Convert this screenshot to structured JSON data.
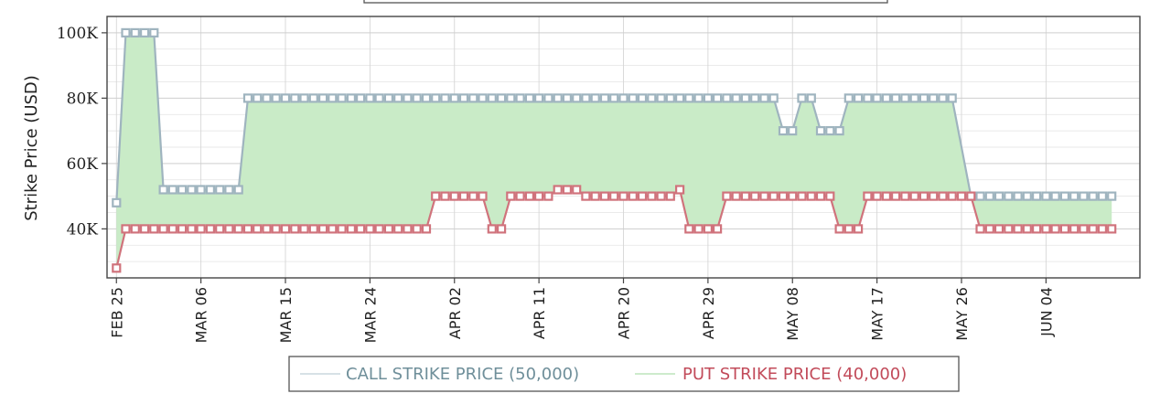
{
  "chart_data": {
    "type": "area",
    "title": "",
    "xlabel": "",
    "ylabel": "Strike Price (USD)",
    "ylim": [
      25000,
      105000
    ],
    "xlim": [
      "2025-02-24",
      "2025-06-14"
    ],
    "grid": true,
    "y_ticks": [
      {
        "value": 40000,
        "label": "40K"
      },
      {
        "value": 60000,
        "label": "60K"
      },
      {
        "value": 80000,
        "label": "80K"
      },
      {
        "value": 100000,
        "label": "100K"
      }
    ],
    "x_ticks": [
      {
        "value": "2025-02-25",
        "label": "FEB 25"
      },
      {
        "value": "2025-03-06",
        "label": "MAR 06"
      },
      {
        "value": "2025-03-15",
        "label": "MAR 15"
      },
      {
        "value": "2025-03-24",
        "label": "MAR 24"
      },
      {
        "value": "2025-04-02",
        "label": "APR 02"
      },
      {
        "value": "2025-04-11",
        "label": "APR 11"
      },
      {
        "value": "2025-04-20",
        "label": "APR 20"
      },
      {
        "value": "2025-04-29",
        "label": "APR 29"
      },
      {
        "value": "2025-05-08",
        "label": "MAY 08"
      },
      {
        "value": "2025-05-17",
        "label": "MAY 17"
      },
      {
        "value": "2025-05-26",
        "label": "MAY 26"
      },
      {
        "value": "2025-06-04",
        "label": "JUN 04"
      }
    ],
    "legend": {
      "placement": "bottom",
      "entries": [
        {
          "label": "CALL STRIKE PRICE (50,000)",
          "color": "#7a9aa6"
        },
        {
          "label": "PUT STRIKE PRICE (40,000)",
          "color": "#c8505f"
        }
      ]
    },
    "fill_color": "#c9ebc7",
    "series": [
      {
        "name": "CALL STRIKE PRICE",
        "color": "#9fb4bf",
        "segments": [
          {
            "from": "2025-02-25",
            "to": "2025-02-25",
            "value": 48000
          },
          {
            "from": "2025-02-26",
            "to": "2025-02-29",
            "value": 100000
          },
          {
            "from": "2025-03-02",
            "to": "2025-03-10",
            "value": 52000
          },
          {
            "from": "2025-03-11",
            "to": "2025-05-06",
            "value": 80000
          },
          {
            "from": "2025-05-07",
            "to": "2025-05-08",
            "value": 70000
          },
          {
            "from": "2025-05-09",
            "to": "2025-05-10",
            "value": 80000
          },
          {
            "from": "2025-05-11",
            "to": "2025-05-13",
            "value": 70000
          },
          {
            "from": "2025-05-14",
            "to": "2025-05-25",
            "value": 80000
          },
          {
            "from": "2025-05-27",
            "to": "2025-06-11",
            "value": 50000
          }
        ]
      },
      {
        "name": "PUT STRIKE PRICE",
        "color": "#d0737c",
        "segments": [
          {
            "from": "2025-02-25",
            "to": "2025-02-25",
            "value": 28000
          },
          {
            "from": "2025-02-26",
            "to": "2025-03-30",
            "value": 40000
          },
          {
            "from": "2025-03-31",
            "to": "2025-04-05",
            "value": 50000
          },
          {
            "from": "2025-04-06",
            "to": "2025-04-07",
            "value": 40000
          },
          {
            "from": "2025-04-08",
            "to": "2025-04-12",
            "value": 50000
          },
          {
            "from": "2025-04-13",
            "to": "2025-04-15",
            "value": 52000
          },
          {
            "from": "2025-04-16",
            "to": "2025-04-25",
            "value": 50000
          },
          {
            "from": "2025-04-26",
            "to": "2025-04-26",
            "value": 52000
          },
          {
            "from": "2025-04-27",
            "to": "2025-04-30",
            "value": 40000
          },
          {
            "from": "2025-05-01",
            "to": "2025-05-12",
            "value": 50000
          },
          {
            "from": "2025-05-13",
            "to": "2025-05-15",
            "value": 40000
          },
          {
            "from": "2025-05-16",
            "to": "2025-05-27",
            "value": 50000
          },
          {
            "from": "2025-05-28",
            "to": "2025-06-11",
            "value": 40000
          }
        ]
      }
    ]
  }
}
